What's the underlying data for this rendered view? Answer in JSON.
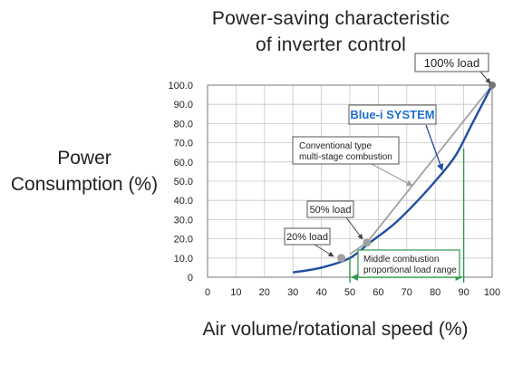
{
  "chart_data": {
    "type": "line",
    "title": [
      "Power-saving characteristic",
      "of inverter control"
    ],
    "ylabel": [
      "Power",
      "Consumption (%)"
    ],
    "xlabel": "Air volume/rotational speed (%)",
    "xlim": [
      0,
      100
    ],
    "ylim": [
      0,
      100
    ],
    "x_ticks": [
      "0",
      "10",
      "20",
      "30",
      "40",
      "50",
      "60",
      "70",
      "80",
      "90",
      "100"
    ],
    "y_ticks": [
      "0",
      "10.0",
      "20.0",
      "30.0",
      "40.0",
      "50.0",
      "60.0",
      "70.0",
      "80.0",
      "90.0",
      "100.0"
    ],
    "grid": true,
    "series": [
      {
        "name": "Blue-i SYSTEM",
        "color": "#1f4ea0",
        "x": [
          30,
          40,
          50,
          57,
          65,
          72,
          80,
          87,
          93,
          100
        ],
        "y": [
          2.5,
          5,
          10,
          18,
          27,
          37,
          50,
          63,
          80,
          100
        ]
      },
      {
        "name": "Conventional type multi-stage combustion",
        "color": "#a0a0a0",
        "x": [
          50,
          56,
          100
        ],
        "y": [
          12,
          18,
          100
        ]
      }
    ],
    "points": [
      {
        "label": "20% load",
        "x": 47,
        "y": 10
      },
      {
        "label": "50% load",
        "x": 56,
        "y": 18
      },
      {
        "label": "100% load",
        "x": 100,
        "y": 100
      }
    ],
    "callouts": {
      "blue": "Blue-i SYSTEM",
      "conventional": [
        "Conventional type",
        "multi-stage combustion"
      ],
      "middle": [
        "Middle combustion",
        "proportional load range"
      ]
    },
    "middle_range": [
      50,
      90
    ],
    "colors": {
      "blue": "#1f4ea0",
      "gray": "#a0a0a0",
      "green": "#2e9a4a",
      "blue_label": "#1e6fd0"
    }
  }
}
